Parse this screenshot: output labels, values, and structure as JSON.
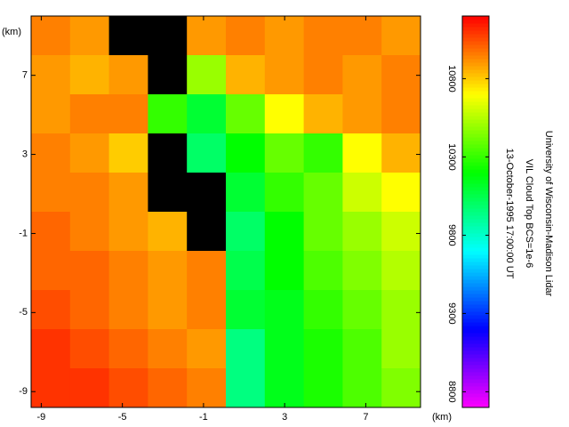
{
  "chart_data": {
    "type": "heatmap",
    "xlabel": "(km)",
    "ylabel": "(km)",
    "annotations": [
      "University of Wisconsin-Madison Lidar",
      "VIL Cloud Top BCS=1e-6",
      "13-October-1995 17:00:00 UT"
    ],
    "xlim": [
      -9.5,
      9.7
    ],
    "ylim": [
      -9.8,
      10
    ],
    "xticks": [
      -9,
      -5,
      -1,
      3,
      7
    ],
    "yticks": [
      -9,
      -5,
      -1,
      3,
      7
    ],
    "x": [
      -8.54,
      -6.62,
      -4.7,
      -2.78,
      -0.86,
      1.06,
      2.98,
      4.9,
      6.82,
      8.74
    ],
    "y": [
      9.01,
      7.03,
      5.05,
      3.07,
      1.09,
      -0.89,
      -2.87,
      -4.85,
      -6.83,
      -8.81
    ],
    "values": [
      [
        10950,
        10900,
        null,
        null,
        10900,
        10950,
        10900,
        10950,
        10950,
        10900
      ],
      [
        10900,
        10850,
        10900,
        null,
        10500,
        10850,
        10900,
        10950,
        10900,
        10950
      ],
      [
        10900,
        10950,
        10950,
        10300,
        10100,
        10400,
        10700,
        10850,
        10900,
        10950
      ],
      [
        10950,
        10900,
        10800,
        null,
        10000,
        10200,
        10400,
        10300,
        10700,
        10850
      ],
      [
        10950,
        10950,
        10900,
        null,
        null,
        10100,
        10300,
        10400,
        10600,
        10700
      ],
      [
        11000,
        10950,
        10900,
        10850,
        null,
        10000,
        10200,
        10400,
        10500,
        10600
      ],
      [
        11000,
        11000,
        10950,
        10900,
        10950,
        10050,
        10200,
        10350,
        10450,
        10550
      ],
      [
        11050,
        11000,
        10950,
        10900,
        10950,
        10100,
        10150,
        10300,
        10400,
        10500
      ],
      [
        11100,
        11050,
        11000,
        10950,
        10900,
        9950,
        10150,
        10250,
        10350,
        10500
      ],
      [
        11100,
        11100,
        11050,
        11000,
        10950,
        9950,
        10150,
        10250,
        10350,
        10450
      ]
    ],
    "colormap": [
      "#ff00ff",
      "#0000ff",
      "#00ffff",
      "#00ff00",
      "#ffff00",
      "#ff0000"
    ],
    "null_color": "#000000",
    "clim": [
      8700,
      11200
    ],
    "cticks": [
      8800,
      9300,
      9800,
      10300,
      10800
    ]
  }
}
